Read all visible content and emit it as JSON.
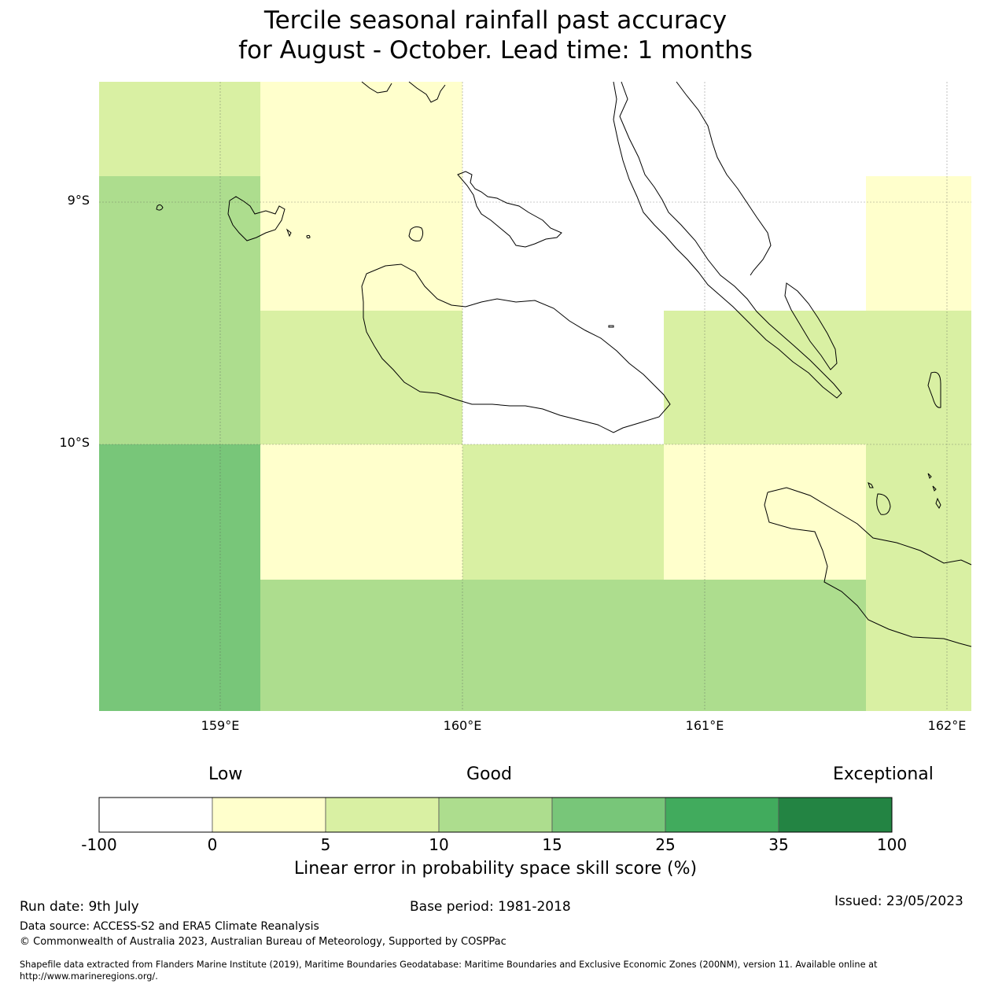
{
  "title_line1": "Tercile seasonal rainfall past accuracy",
  "title_line2": "for August - October. Lead time: 1 months",
  "map": {
    "lat_labels": [
      "9°S",
      "10°S"
    ],
    "lon_labels": [
      "159°E",
      "160°E",
      "161°E",
      "162°E"
    ],
    "land_outline_color": "#000000",
    "grid_cells_note_colors": {
      "cat_0_5": "#ffffcc",
      "cat_5_10": "#d9f0a3",
      "cat_10_15": "#addd8e",
      "cat_15_25": "#78c679",
      "cat_25_35": "#41ab5d",
      "cat_35_100": "#238443",
      "missing": "#ffffff"
    }
  },
  "colorbar": {
    "top_labels": {
      "low": "Low",
      "good": "Good",
      "exceptional": "Exceptional"
    },
    "ticks": [
      "-100",
      "0",
      "5",
      "10",
      "15",
      "25",
      "35",
      "100"
    ],
    "colors": [
      "#ffffff",
      "#ffffcc",
      "#d9f0a3",
      "#addd8e",
      "#78c679",
      "#41ab5d",
      "#238443"
    ],
    "axis_label": "Linear error in probability space skill score (%)"
  },
  "footer": {
    "run_date": "Run date: 9th July",
    "base_period": "Base period: 1981-2018",
    "issued": "Issued: 23/05/2023",
    "data_source": "Data source: ACCESS-S2 and ERA5 Climate Reanalysis",
    "copyright": "© Commonwealth of Australia 2023, Australian Bureau of Meteorology, Supported by COSPPac",
    "shapefile_line1": "Shapefile data extracted from Flanders Marine Institute (2019), Maritime Boundaries Geodatabase: Maritime Boundaries and Exclusive Economic Zones (200NM), version 11. Available online at",
    "shapefile_line2": "http://www.marineregions.org/."
  }
}
